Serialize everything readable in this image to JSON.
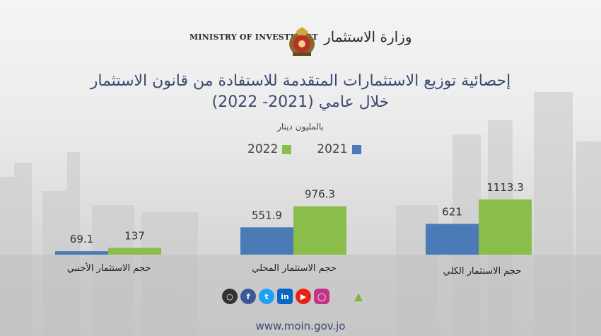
{
  "header": {
    "ministry_en": "Ministry of Investment",
    "ministry_ar": "وزارة الاستثمار"
  },
  "title_line1": "إحصائية توزيع الاستثمارات المتقدمة للاستفادة من قانون الاستثمار",
  "title_line2": "خلال عامي (2021- 2022)",
  "unit_label": "بالمليون دينار",
  "colors": {
    "y2021": "#4a7bb7",
    "y2022": "#8bbd4a",
    "title": "#3b4a72"
  },
  "chart_data": {
    "type": "bar",
    "title": "إحصائية توزيع الاستثمارات المتقدمة للاستفادة من قانون الاستثمار خلال عامي (2021- 2022)",
    "ylabel": "بالمليون دينار",
    "categories": [
      "حجم الاستثمار الأجنبي",
      "حجم الاستثمار المحلي",
      "حجم الاستثمار الكلي"
    ],
    "series": [
      {
        "name": "2021",
        "values": [
          69.1,
          551.9,
          621
        ]
      },
      {
        "name": "2022",
        "values": [
          137,
          976.3,
          1113.3
        ]
      }
    ],
    "legend_position": "top-center",
    "grid": false,
    "axes_visible": false
  },
  "social_icons": [
    "globe-icon",
    "facebook-icon",
    "twitter-icon",
    "linkedin-icon",
    "youtube-icon",
    "instagram-icon",
    "apple-icon",
    "android-icon"
  ],
  "footer_url": "www.moin.gov.jo"
}
